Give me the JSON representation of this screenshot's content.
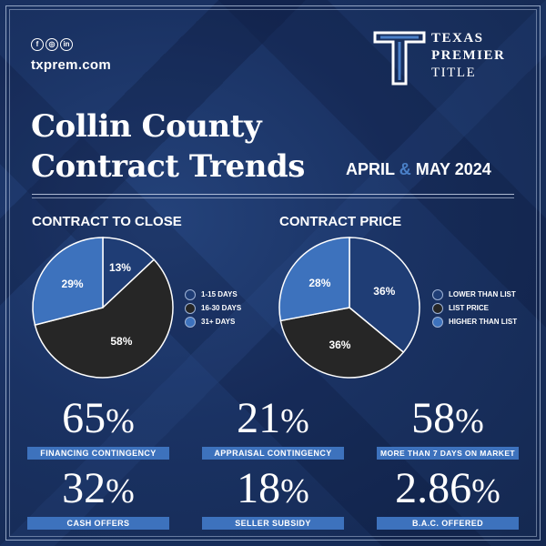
{
  "header": {
    "social_icons": [
      "facebook-icon",
      "instagram-icon",
      "linkedin-icon"
    ],
    "social_glyphs": [
      "f",
      "◎",
      "in"
    ],
    "website": "txprem.com",
    "logo": {
      "line1": "TEXAS",
      "line2": "PREMIER",
      "line3": "TITLE"
    },
    "title_line1": "Collin County",
    "title_line2": "Contract Trends",
    "date_part1": "APRIL",
    "date_amp": "&",
    "date_part2": "MAY 2024"
  },
  "colors": {
    "dark_blue": "#1f3d75",
    "black": "#262626",
    "light_blue": "#3d72bd",
    "accent": "#4a80c8"
  },
  "chart_data": [
    {
      "type": "pie",
      "title": "CONTRACT TO CLOSE",
      "legend_placement": "right",
      "slices": [
        {
          "label": "1-15 DAYS",
          "value": 13,
          "display": "13%",
          "color": "#1f3d75"
        },
        {
          "label": "16-30 DAYS",
          "value": 58,
          "display": "58%",
          "color": "#262626"
        },
        {
          "label": "31+ DAYS",
          "value": 29,
          "display": "29%",
          "color": "#3d72bd"
        }
      ]
    },
    {
      "type": "pie",
      "title": "CONTRACT PRICE",
      "legend_placement": "right",
      "slices": [
        {
          "label": "LOWER THAN LIST",
          "value": 36,
          "display": "36%",
          "color": "#1f3d75"
        },
        {
          "label": "LIST PRICE",
          "value": 36,
          "display": "36%",
          "color": "#262626"
        },
        {
          "label": "HIGHER THAN LIST",
          "value": 28,
          "display": "28%",
          "color": "#3d72bd"
        }
      ]
    }
  ],
  "stats": [
    {
      "value": "65",
      "unit": "%",
      "label": "FINANCING CONTINGENCY"
    },
    {
      "value": "21",
      "unit": "%",
      "label": "APPRAISAL CONTINGENCY"
    },
    {
      "value": "58",
      "unit": "%",
      "label": "MORE THAN 7 DAYS ON MARKET"
    },
    {
      "value": "32",
      "unit": "%",
      "label": "CASH OFFERS"
    },
    {
      "value": "18",
      "unit": "%",
      "label": "SELLER SUBSIDY"
    },
    {
      "value": "2.86",
      "unit": "%",
      "label": "B.A.C. OFFERED"
    }
  ]
}
